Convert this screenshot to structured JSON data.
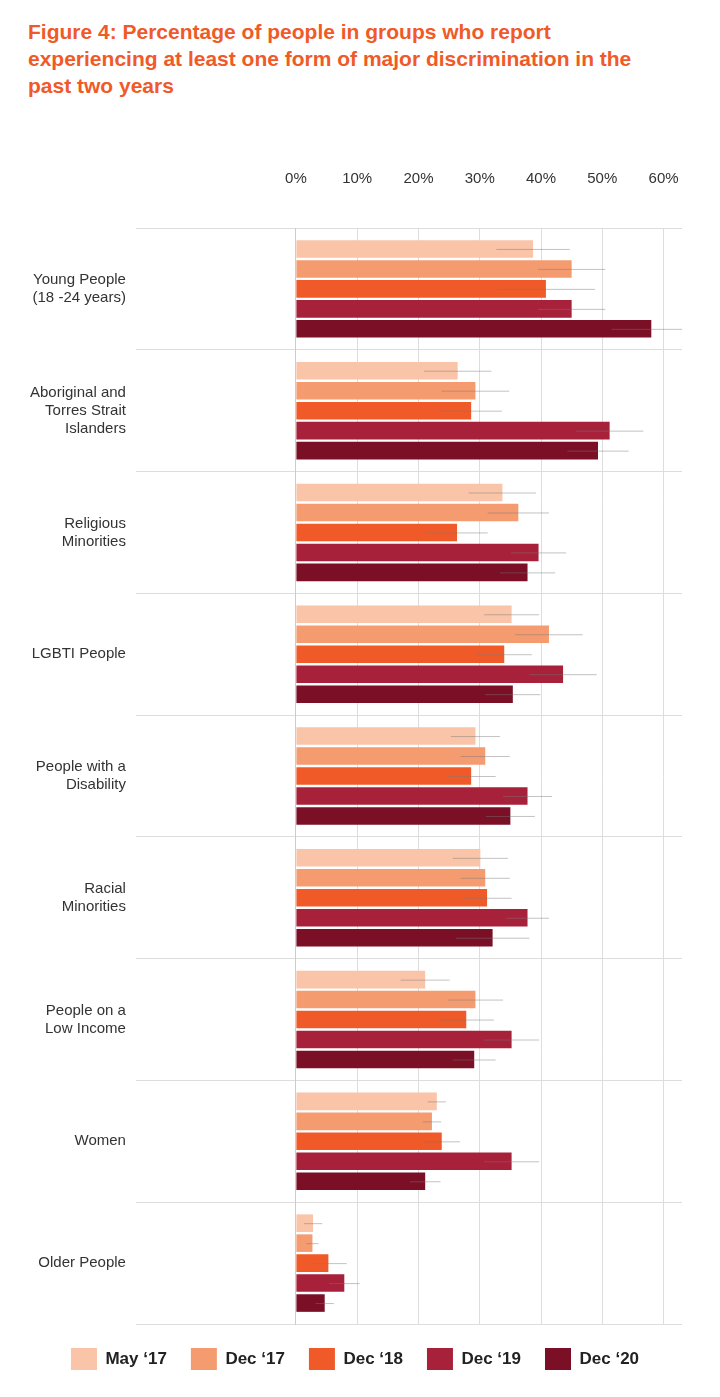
{
  "chart_data": {
    "type": "bar",
    "title": "Figure 4: Percentage of people in groups who report experiencing at least one form of major discrimination in the past two years",
    "orientation": "horizontal",
    "grid": true,
    "legend": "bottom",
    "categories": [
      "Young People (18 -24 years)",
      "Aboriginal and Torres Strait Islanders",
      "Religious Minorities",
      "LGBTI People",
      "People with a Disability",
      "Racial Minorities",
      "People on a Low Income",
      "Women",
      "Older People"
    ],
    "xlim": [
      0,
      63
    ],
    "xticks": [
      {
        "value": 0,
        "label": "0%"
      },
      {
        "value": 10,
        "label": "10%"
      },
      {
        "value": 20,
        "label": "20%"
      },
      {
        "value": 30,
        "label": "30%"
      },
      {
        "value": 40,
        "label": "40%"
      },
      {
        "value": 50,
        "label": "50%"
      },
      {
        "value": 60,
        "label": "60%"
      }
    ],
    "series": [
      {
        "name": "May ‘17",
        "color": "#f9c4a8",
        "values": [
          38.7,
          26.4,
          33.7,
          35.2,
          29.3,
          30.1,
          21.1,
          23.0,
          2.8
        ],
        "errors": [
          6,
          5.5,
          5.5,
          4.5,
          4,
          4.5,
          4,
          1.5,
          1.5
        ]
      },
      {
        "name": "Dec ‘17",
        "color": "#f59b70",
        "values": [
          45.0,
          29.3,
          36.3,
          41.3,
          30.9,
          30.9,
          29.3,
          22.2,
          2.7
        ],
        "errors": [
          5.5,
          5.5,
          5,
          5.5,
          4,
          4,
          4.5,
          1.5,
          1
        ]
      },
      {
        "name": "Dec ‘18",
        "color": "#f05a28",
        "values": [
          40.8,
          28.6,
          26.3,
          34.0,
          28.6,
          31.2,
          27.8,
          23.8,
          5.3
        ],
        "errors": [
          8,
          5,
          5,
          4.5,
          4,
          4,
          4.5,
          3,
          3
        ]
      },
      {
        "name": "Dec ‘19",
        "color": "#a8213a",
        "values": [
          45.0,
          51.2,
          39.6,
          43.6,
          37.8,
          37.8,
          35.2,
          35.2,
          7.9
        ],
        "errors": [
          5.5,
          5.5,
          4.5,
          5.5,
          4,
          3.5,
          4.5,
          4.5,
          2.5
        ]
      },
      {
        "name": "Dec ‘20",
        "color": "#7b0f26",
        "values": [
          58.0,
          49.3,
          37.8,
          35.4,
          35.0,
          32.1,
          29.1,
          21.1,
          4.7
        ],
        "errors": [
          6.5,
          5,
          4.5,
          4.5,
          4,
          6,
          3.5,
          2.5,
          1.5
        ]
      }
    ]
  }
}
